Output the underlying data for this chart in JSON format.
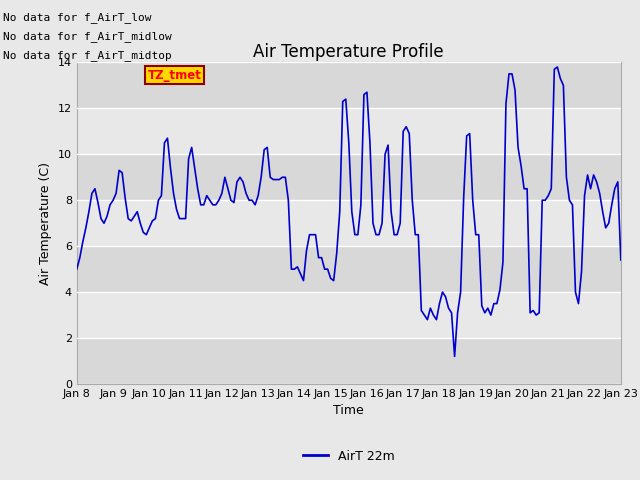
{
  "title": "Air Temperature Profile",
  "xlabel": "Time",
  "ylabel": "Air Temperature (C)",
  "ylim": [
    0,
    14
  ],
  "yticks": [
    0,
    2,
    4,
    6,
    8,
    10,
    12,
    14
  ],
  "line_color": "#0000CC",
  "line_width": 1.2,
  "legend_label": "AirT 22m",
  "annotations": [
    "No data for f_AirT_low",
    "No data for f_AirT_midlow",
    "No data for f_AirT_midtop"
  ],
  "annotation_color": "black",
  "annotation_fontsize": 8,
  "highlight_box_text": "TZ_tmet",
  "highlight_box_color": "#FFD700",
  "highlight_box_text_color": "red",
  "background_color": "#E8E8E8",
  "plot_bg_color": "#E8E8E8",
  "x_tick_labels": [
    "Jan 8",
    "Jan 9",
    "Jan 10",
    "Jan 11",
    "Jan 12",
    "Jan 13",
    "Jan 14",
    "Jan 15",
    "Jan 16",
    "Jan 17",
    "Jan 18",
    "Jan 19",
    "Jan 20",
    "Jan 21",
    "Jan 22",
    "Jan 23"
  ],
  "x_tick_positions": [
    0,
    1,
    2,
    3,
    4,
    5,
    6,
    7,
    8,
    9,
    10,
    11,
    12,
    13,
    14,
    15
  ],
  "time_values": [
    0.0,
    0.083,
    0.167,
    0.25,
    0.333,
    0.417,
    0.5,
    0.583,
    0.667,
    0.75,
    0.833,
    0.917,
    1.0,
    1.083,
    1.167,
    1.25,
    1.333,
    1.417,
    1.5,
    1.583,
    1.667,
    1.75,
    1.833,
    1.917,
    2.0,
    2.083,
    2.167,
    2.25,
    2.333,
    2.417,
    2.5,
    2.583,
    2.667,
    2.75,
    2.833,
    2.917,
    3.0,
    3.083,
    3.167,
    3.25,
    3.333,
    3.417,
    3.5,
    3.583,
    3.667,
    3.75,
    3.833,
    3.917,
    4.0,
    4.083,
    4.167,
    4.25,
    4.333,
    4.417,
    4.5,
    4.583,
    4.667,
    4.75,
    4.833,
    4.917,
    5.0,
    5.083,
    5.167,
    5.25,
    5.333,
    5.417,
    5.5,
    5.583,
    5.667,
    5.75,
    5.833,
    5.917,
    6.0,
    6.083,
    6.167,
    6.25,
    6.333,
    6.417,
    6.5,
    6.583,
    6.667,
    6.75,
    6.833,
    6.917,
    7.0,
    7.083,
    7.167,
    7.25,
    7.333,
    7.417,
    7.5,
    7.583,
    7.667,
    7.75,
    7.833,
    7.917,
    8.0,
    8.083,
    8.167,
    8.25,
    8.333,
    8.417,
    8.5,
    8.583,
    8.667,
    8.75,
    8.833,
    8.917,
    9.0,
    9.083,
    9.167,
    9.25,
    9.333,
    9.417,
    9.5,
    9.583,
    9.667,
    9.75,
    9.833,
    9.917,
    10.0,
    10.083,
    10.167,
    10.25,
    10.333,
    10.417,
    10.5,
    10.583,
    10.667,
    10.75,
    10.833,
    10.917,
    11.0,
    11.083,
    11.167,
    11.25,
    11.333,
    11.417,
    11.5,
    11.583,
    11.667,
    11.75,
    11.833,
    11.917,
    12.0,
    12.083,
    12.167,
    12.25,
    12.333,
    12.417,
    12.5,
    12.583,
    12.667,
    12.75,
    12.833,
    12.917,
    13.0,
    13.083,
    13.167,
    13.25,
    13.333,
    13.417,
    13.5,
    13.583,
    13.667,
    13.75,
    13.833,
    13.917,
    14.0,
    14.083,
    14.167,
    14.25,
    14.333,
    14.417,
    14.5,
    14.583,
    14.667,
    14.75,
    14.833,
    14.917,
    15.0
  ],
  "temp_values": [
    5.0,
    5.5,
    6.2,
    6.8,
    7.5,
    8.3,
    8.5,
    7.9,
    7.2,
    7.0,
    7.3,
    7.8,
    8.0,
    8.3,
    9.3,
    9.2,
    8.1,
    7.2,
    7.1,
    7.3,
    7.5,
    7.0,
    6.6,
    6.5,
    6.8,
    7.1,
    7.2,
    8.0,
    8.2,
    10.5,
    10.7,
    9.4,
    8.3,
    7.6,
    7.2,
    7.2,
    7.2,
    9.8,
    10.3,
    9.4,
    8.5,
    7.8,
    7.8,
    8.2,
    8.0,
    7.8,
    7.8,
    8.0,
    8.3,
    9.0,
    8.5,
    8.0,
    7.9,
    8.8,
    9.0,
    8.8,
    8.3,
    8.0,
    8.0,
    7.8,
    8.2,
    9.0,
    10.2,
    10.3,
    9.0,
    8.9,
    8.9,
    8.9,
    9.0,
    9.0,
    8.0,
    5.0,
    5.0,
    5.1,
    4.8,
    4.5,
    5.8,
    6.5,
    6.5,
    6.5,
    5.5,
    5.5,
    5.0,
    5.0,
    4.6,
    4.5,
    5.7,
    7.5,
    12.3,
    12.4,
    10.5,
    7.5,
    6.5,
    6.5,
    7.8,
    12.6,
    12.7,
    10.5,
    7.0,
    6.5,
    6.5,
    7.0,
    10.0,
    10.4,
    7.5,
    6.5,
    6.5,
    7.0,
    11.0,
    11.2,
    10.9,
    8.0,
    6.5,
    6.5,
    3.2,
    3.0,
    2.8,
    3.3,
    3.0,
    2.8,
    3.5,
    4.0,
    3.8,
    3.3,
    3.1,
    1.2,
    3.1,
    4.0,
    8.1,
    10.8,
    10.9,
    8.0,
    6.5,
    6.5,
    3.4,
    3.1,
    3.3,
    3.0,
    3.5,
    3.5,
    4.1,
    5.3,
    12.2,
    13.5,
    13.5,
    12.8,
    10.3,
    9.5,
    8.5,
    8.5,
    3.1,
    3.2,
    3.0,
    3.1,
    8.0,
    8.0,
    8.2,
    8.5,
    13.7,
    13.8,
    13.3,
    13.0,
    9.0,
    8.0,
    7.8,
    4.0,
    3.5,
    4.9,
    8.2,
    9.1,
    8.5,
    9.1,
    8.8,
    8.3,
    7.5,
    6.8,
    7.0,
    7.8,
    8.5,
    8.8,
    5.4
  ],
  "band_colors": [
    "#D8D8D8",
    "#E8E8E8"
  ],
  "band_ranges": [
    [
      0,
      2
    ],
    [
      2,
      4
    ],
    [
      4,
      6
    ],
    [
      6,
      8
    ],
    [
      8,
      10
    ],
    [
      10,
      12
    ],
    [
      12,
      14
    ]
  ]
}
